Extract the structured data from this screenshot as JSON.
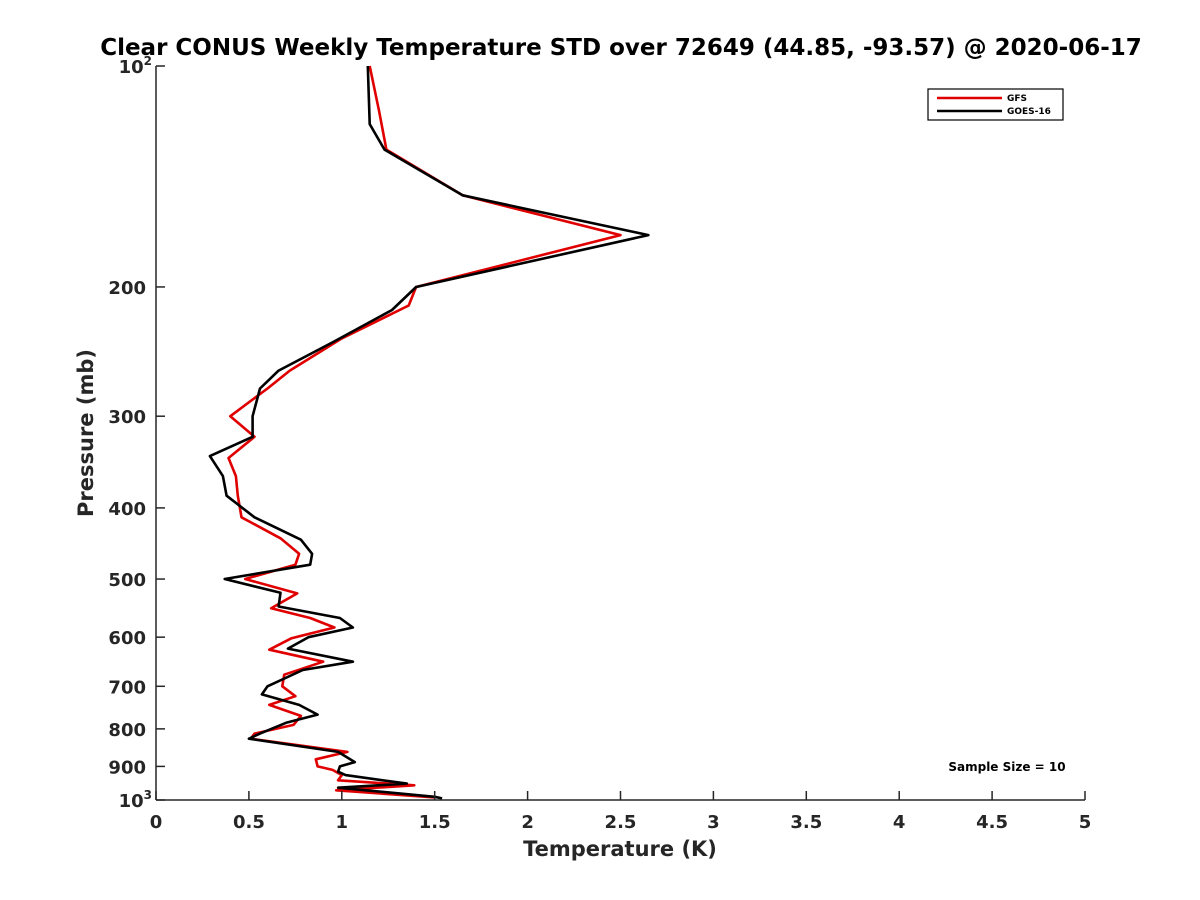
{
  "chart_data": {
    "type": "line",
    "title": "Clear CONUS Weekly Temperature STD over 72649 (44.85, -93.57) @ 2020-06-17",
    "xlabel": "Temperature (K)",
    "ylabel": "Pressure (mb)",
    "xlim": [
      0,
      5
    ],
    "ylim": [
      100,
      1000
    ],
    "y_scale": "log",
    "y_reversed": true,
    "x_ticks": [
      "0",
      "0.5",
      "1",
      "1.5",
      "2",
      "2.5",
      "3",
      "3.5",
      "4",
      "4.5",
      "5"
    ],
    "x_tick_values": [
      0,
      0.5,
      1,
      1.5,
      2,
      2.5,
      3,
      3.5,
      4,
      4.5,
      5
    ],
    "y_ticks": [
      {
        "value": 100,
        "base": "10",
        "exp": "2"
      },
      {
        "value": 200,
        "base": "200",
        "exp": ""
      },
      {
        "value": 300,
        "base": "300",
        "exp": ""
      },
      {
        "value": 400,
        "base": "400",
        "exp": ""
      },
      {
        "value": 500,
        "base": "500",
        "exp": ""
      },
      {
        "value": 600,
        "base": "600",
        "exp": ""
      },
      {
        "value": 700,
        "base": "700",
        "exp": ""
      },
      {
        "value": 800,
        "base": "800",
        "exp": ""
      },
      {
        "value": 900,
        "base": "900",
        "exp": ""
      },
      {
        "value": 1000,
        "base": "10",
        "exp": "3"
      }
    ],
    "grid": false,
    "legend_position": "top-right",
    "annotation": "Sample Size = 10",
    "series": [
      {
        "name": "GFS",
        "color": "#e00000",
        "points": [
          [
            1.15,
            100
          ],
          [
            1.2,
            115
          ],
          [
            1.24,
            130
          ],
          [
            1.65,
            150
          ],
          [
            2.5,
            170
          ],
          [
            1.4,
            200
          ],
          [
            1.36,
            212
          ],
          [
            1.0,
            235
          ],
          [
            0.72,
            260
          ],
          [
            0.6,
            275
          ],
          [
            0.4,
            300
          ],
          [
            0.53,
            320
          ],
          [
            0.39,
            342
          ],
          [
            0.43,
            362
          ],
          [
            0.44,
            385
          ],
          [
            0.46,
            412
          ],
          [
            0.67,
            440
          ],
          [
            0.77,
            462
          ],
          [
            0.75,
            478
          ],
          [
            0.48,
            500
          ],
          [
            0.76,
            523
          ],
          [
            0.62,
            548
          ],
          [
            0.83,
            565
          ],
          [
            0.96,
            582
          ],
          [
            0.73,
            602
          ],
          [
            0.61,
            624
          ],
          [
            0.9,
            648
          ],
          [
            0.69,
            675
          ],
          [
            0.68,
            700
          ],
          [
            0.75,
            722
          ],
          [
            0.61,
            742
          ],
          [
            0.78,
            768
          ],
          [
            0.74,
            790
          ],
          [
            0.53,
            812
          ],
          [
            0.51,
            825
          ],
          [
            1.03,
            860
          ],
          [
            0.86,
            880
          ],
          [
            0.87,
            900
          ],
          [
            0.95,
            910
          ],
          [
            1.0,
            925
          ],
          [
            0.98,
            940
          ],
          [
            1.39,
            955
          ],
          [
            0.97,
            970
          ],
          [
            1.5,
            992
          ]
        ]
      },
      {
        "name": "GOES-16",
        "color": "#000000",
        "points": [
          [
            1.14,
            100
          ],
          [
            1.15,
            120
          ],
          [
            1.23,
            130
          ],
          [
            1.65,
            150
          ],
          [
            2.65,
            170
          ],
          [
            1.4,
            200
          ],
          [
            1.27,
            215
          ],
          [
            0.95,
            238
          ],
          [
            0.66,
            260
          ],
          [
            0.56,
            275
          ],
          [
            0.52,
            300
          ],
          [
            0.52,
            320
          ],
          [
            0.29,
            340
          ],
          [
            0.36,
            362
          ],
          [
            0.38,
            385
          ],
          [
            0.53,
            412
          ],
          [
            0.78,
            442
          ],
          [
            0.84,
            462
          ],
          [
            0.83,
            478
          ],
          [
            0.37,
            500
          ],
          [
            0.67,
            522
          ],
          [
            0.66,
            545
          ],
          [
            0.99,
            565
          ],
          [
            1.06,
            582
          ],
          [
            0.82,
            600
          ],
          [
            0.71,
            622
          ],
          [
            1.06,
            648
          ],
          [
            0.79,
            665
          ],
          [
            0.6,
            700
          ],
          [
            0.57,
            718
          ],
          [
            0.77,
            742
          ],
          [
            0.87,
            765
          ],
          [
            0.7,
            785
          ],
          [
            0.56,
            812
          ],
          [
            0.5,
            825
          ],
          [
            0.98,
            860
          ],
          [
            1.07,
            888
          ],
          [
            0.99,
            900
          ],
          [
            0.98,
            915
          ],
          [
            1.02,
            925
          ],
          [
            1.35,
            950
          ],
          [
            0.98,
            962
          ],
          [
            1.5,
            990
          ],
          [
            1.54,
            995
          ]
        ]
      }
    ]
  }
}
